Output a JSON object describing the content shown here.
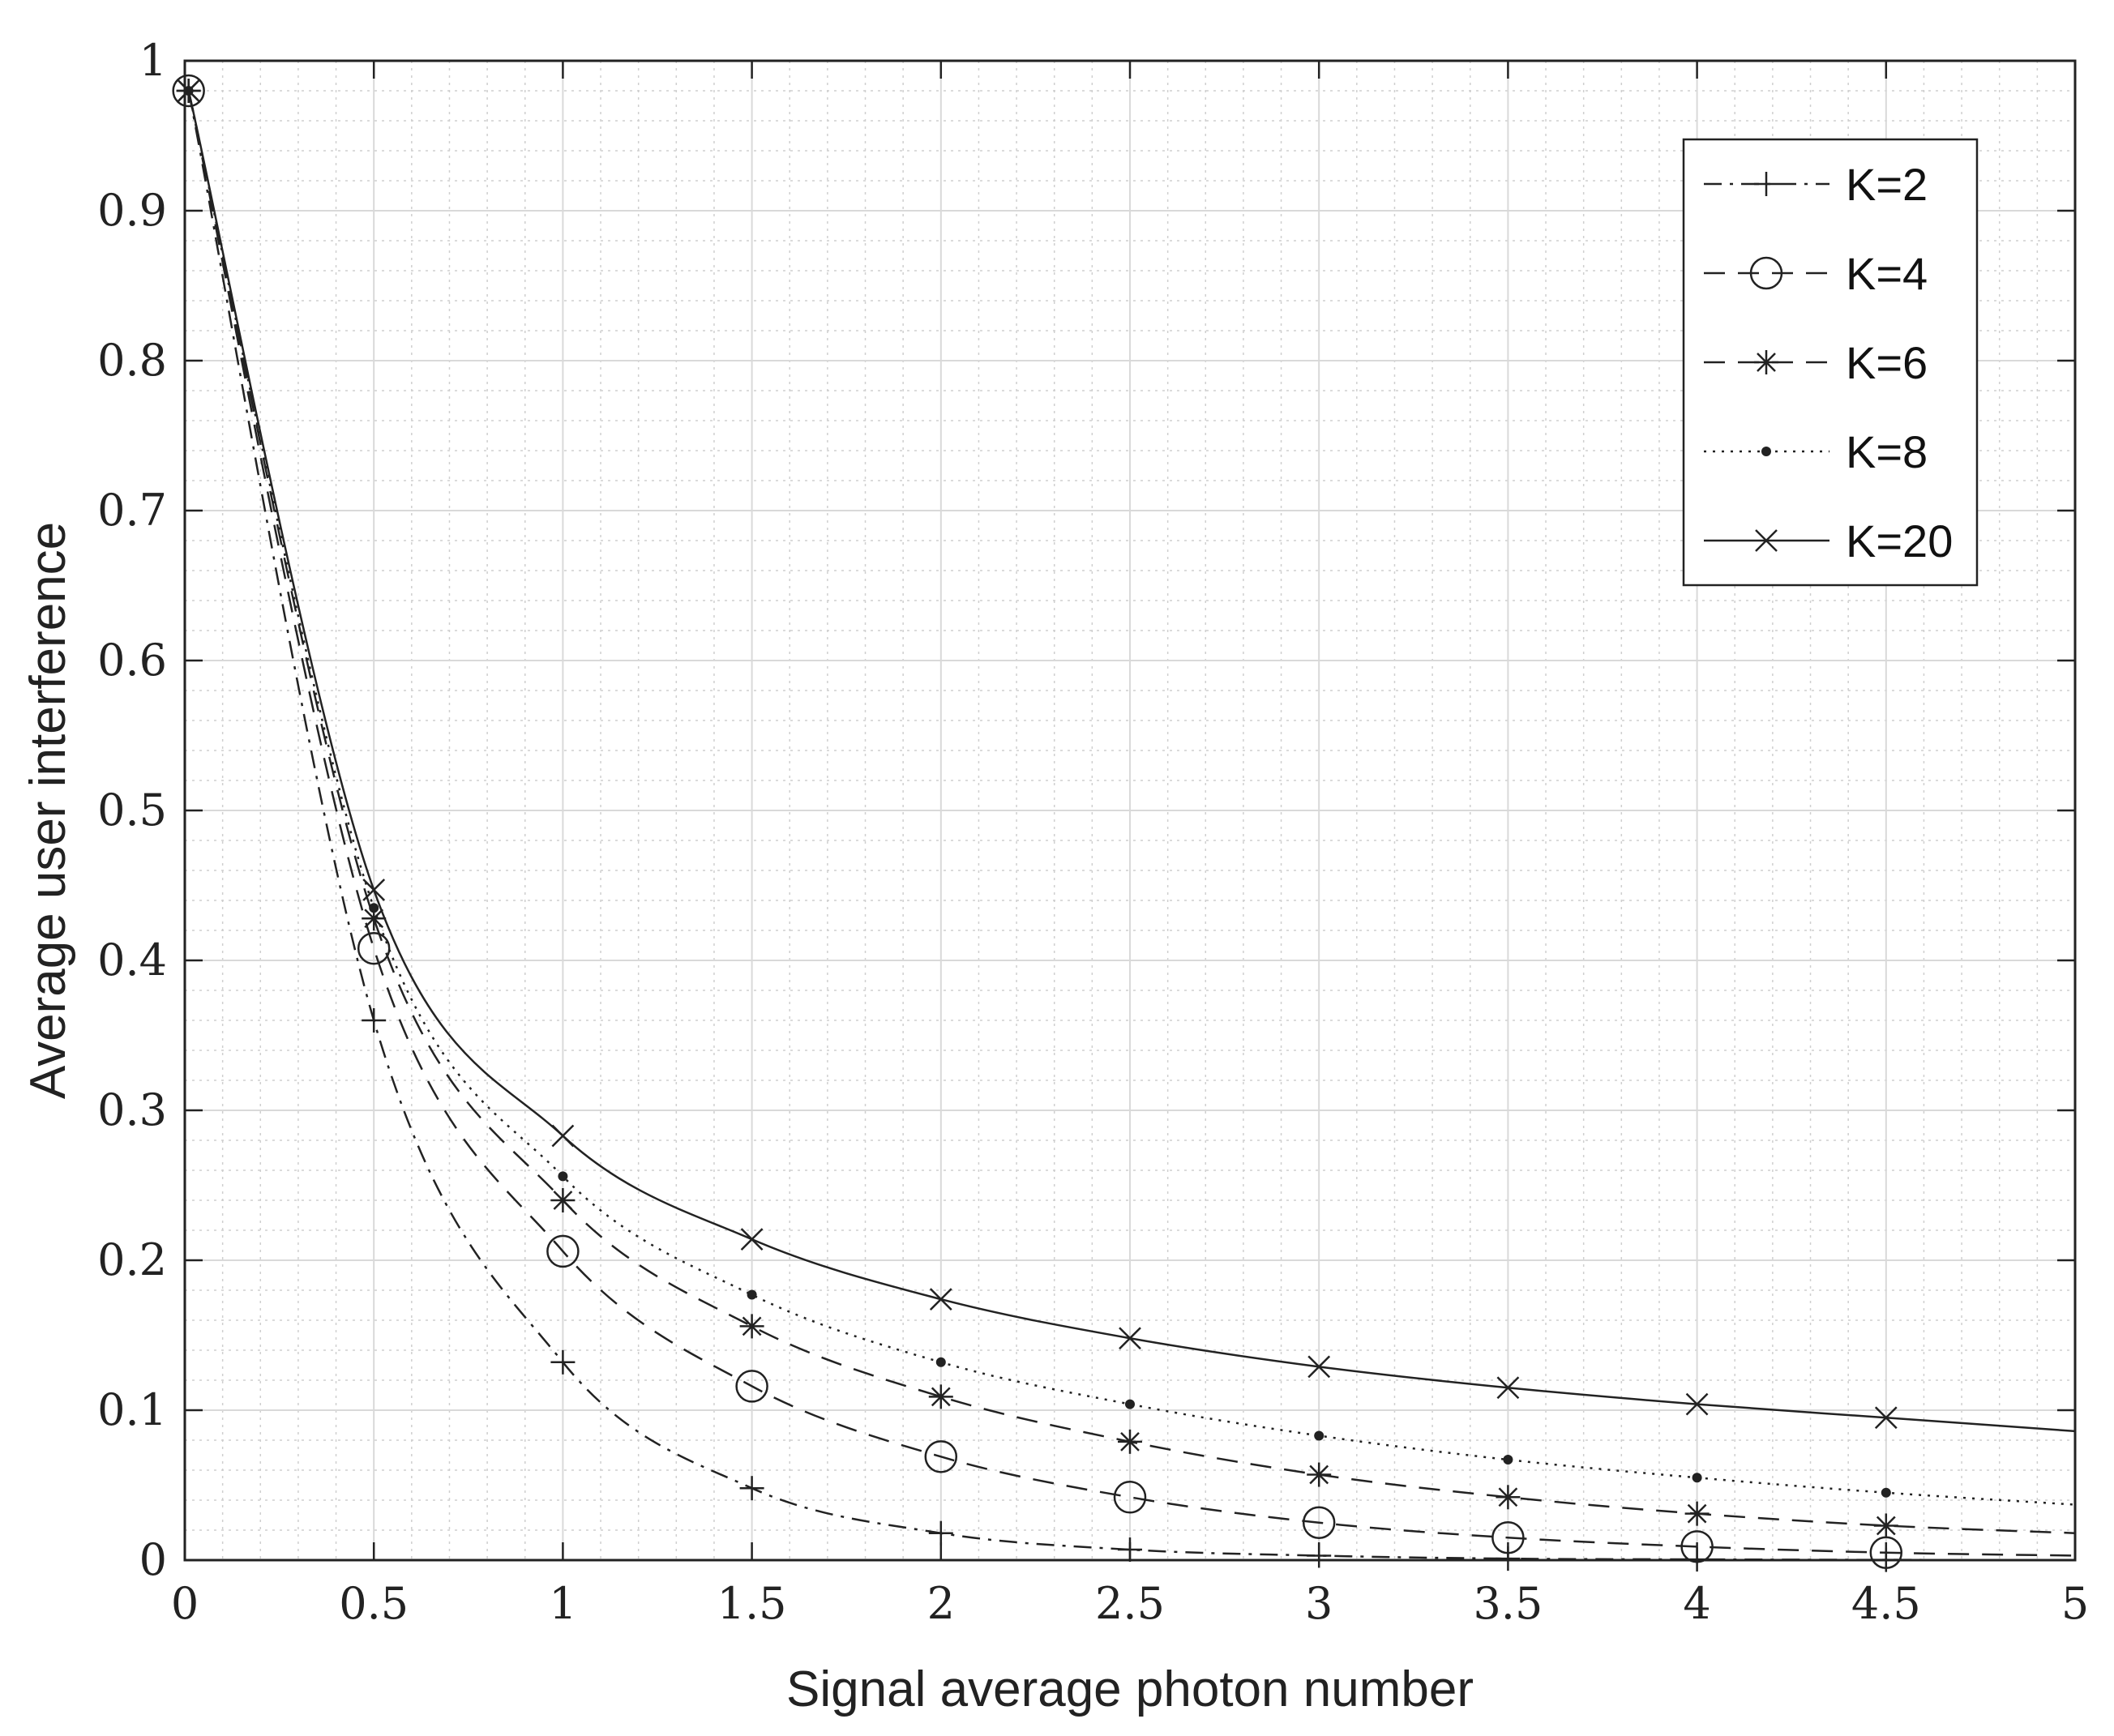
{
  "chart_data": {
    "type": "line",
    "xlabel": "Signal average photon number",
    "ylabel": "Average user interference",
    "xlim": [
      0,
      5
    ],
    "ylim": [
      0,
      1
    ],
    "xticks": [
      "0",
      "0.5",
      "1",
      "1.5",
      "2",
      "2.5",
      "3",
      "3.5",
      "4",
      "4.5",
      "5"
    ],
    "yticks": [
      "0",
      "0.1",
      "0.2",
      "0.3",
      "0.4",
      "0.5",
      "0.6",
      "0.7",
      "0.8",
      "0.9",
      "1"
    ],
    "grid": true,
    "minor_grid": true,
    "legend_position": "top-right",
    "x": [
      0.01,
      0.5,
      1,
      1.5,
      2,
      2.5,
      3,
      3.5,
      4,
      4.5,
      5
    ],
    "series": [
      {
        "name": "K=2",
        "style": "dashdot",
        "marker": "plus",
        "values": [
          0.98,
          0.36,
          0.132,
          0.048,
          0.018,
          0.007,
          0.003,
          0.001,
          0.0005,
          0.0002,
          0.0001
        ]
      },
      {
        "name": "K=4",
        "style": "dashed",
        "marker": "circle",
        "values": [
          0.98,
          0.408,
          0.206,
          0.116,
          0.069,
          0.042,
          0.025,
          0.015,
          0.009,
          0.005,
          0.003
        ]
      },
      {
        "name": "K=6",
        "style": "dashed",
        "marker": "asterisk",
        "values": [
          0.98,
          0.428,
          0.24,
          0.156,
          0.109,
          0.079,
          0.057,
          0.042,
          0.031,
          0.023,
          0.018
        ]
      },
      {
        "name": "K=8",
        "style": "dotted",
        "marker": "dot",
        "values": [
          0.98,
          0.435,
          0.256,
          0.177,
          0.132,
          0.104,
          0.083,
          0.067,
          0.055,
          0.045,
          0.037
        ]
      },
      {
        "name": "K=20",
        "style": "solid",
        "marker": "cross",
        "values": [
          0.98,
          0.447,
          0.283,
          0.214,
          0.174,
          0.148,
          0.129,
          0.115,
          0.104,
          0.095,
          0.086
        ]
      }
    ],
    "colors": {
      "line": "#222222",
      "grid": "#d9d9d9",
      "minor_grid": "#cfcfcf",
      "frame": "#222222"
    }
  }
}
